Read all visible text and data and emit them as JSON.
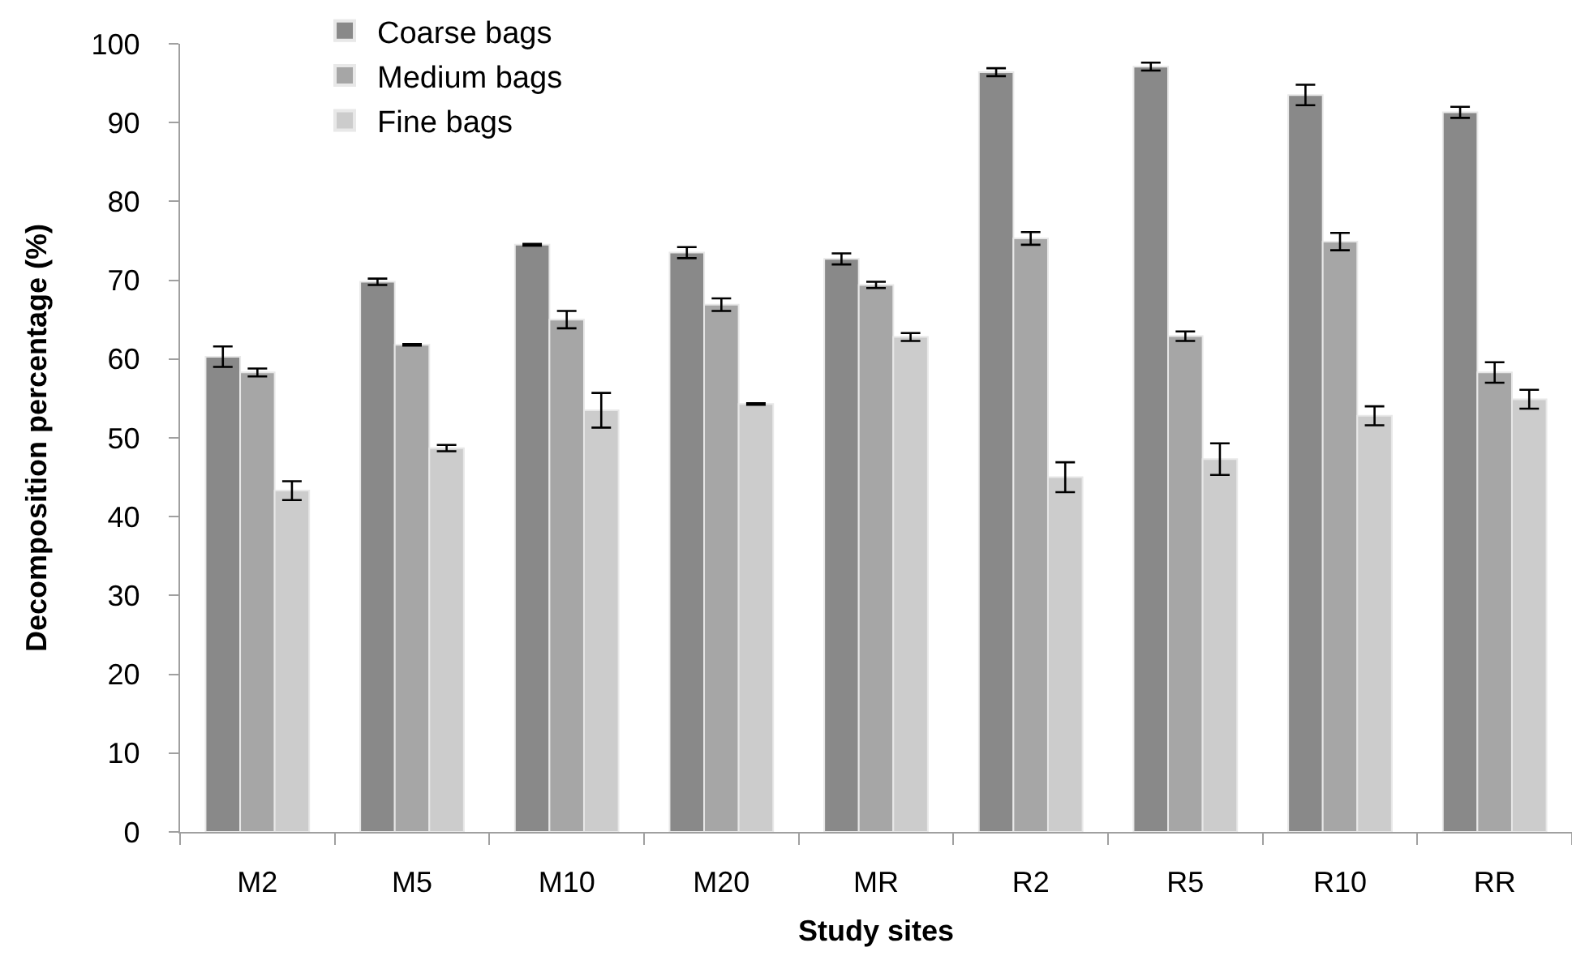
{
  "chart_data": {
    "type": "bar",
    "xlabel": "Study sites",
    "ylabel": "Decomposition percentage (%)",
    "categories": [
      "M2",
      "M5",
      "M10",
      "M20",
      "MR",
      "R2",
      "R5",
      "R10",
      "RR"
    ],
    "ylim": [
      0,
      100
    ],
    "yticks": [
      0,
      10,
      20,
      30,
      40,
      50,
      60,
      70,
      80,
      90,
      100
    ],
    "legend": "top left",
    "series": [
      {
        "name": "Coarse bags",
        "color": "#898989",
        "values": [
          60.3,
          69.8,
          74.5,
          73.5,
          72.7,
          96.4,
          97.1,
          93.5,
          91.3
        ],
        "errors": [
          1.3,
          0.4,
          0.1,
          0.7,
          0.7,
          0.5,
          0.5,
          1.3,
          0.7
        ]
      },
      {
        "name": "Medium bags",
        "color": "#a6a6a6",
        "values": [
          58.3,
          61.8,
          65.0,
          66.9,
          69.4,
          75.3,
          62.9,
          74.9,
          58.3
        ],
        "errors": [
          0.5,
          0.1,
          1.1,
          0.8,
          0.4,
          0.8,
          0.6,
          1.1,
          1.3
        ]
      },
      {
        "name": "Fine bags",
        "color": "#cccccc",
        "values": [
          43.3,
          48.7,
          53.5,
          54.3,
          62.8,
          45.0,
          47.3,
          52.8,
          54.9
        ],
        "errors": [
          1.2,
          0.4,
          2.2,
          0.1,
          0.5,
          1.9,
          2.0,
          1.2,
          1.2
        ]
      }
    ]
  }
}
